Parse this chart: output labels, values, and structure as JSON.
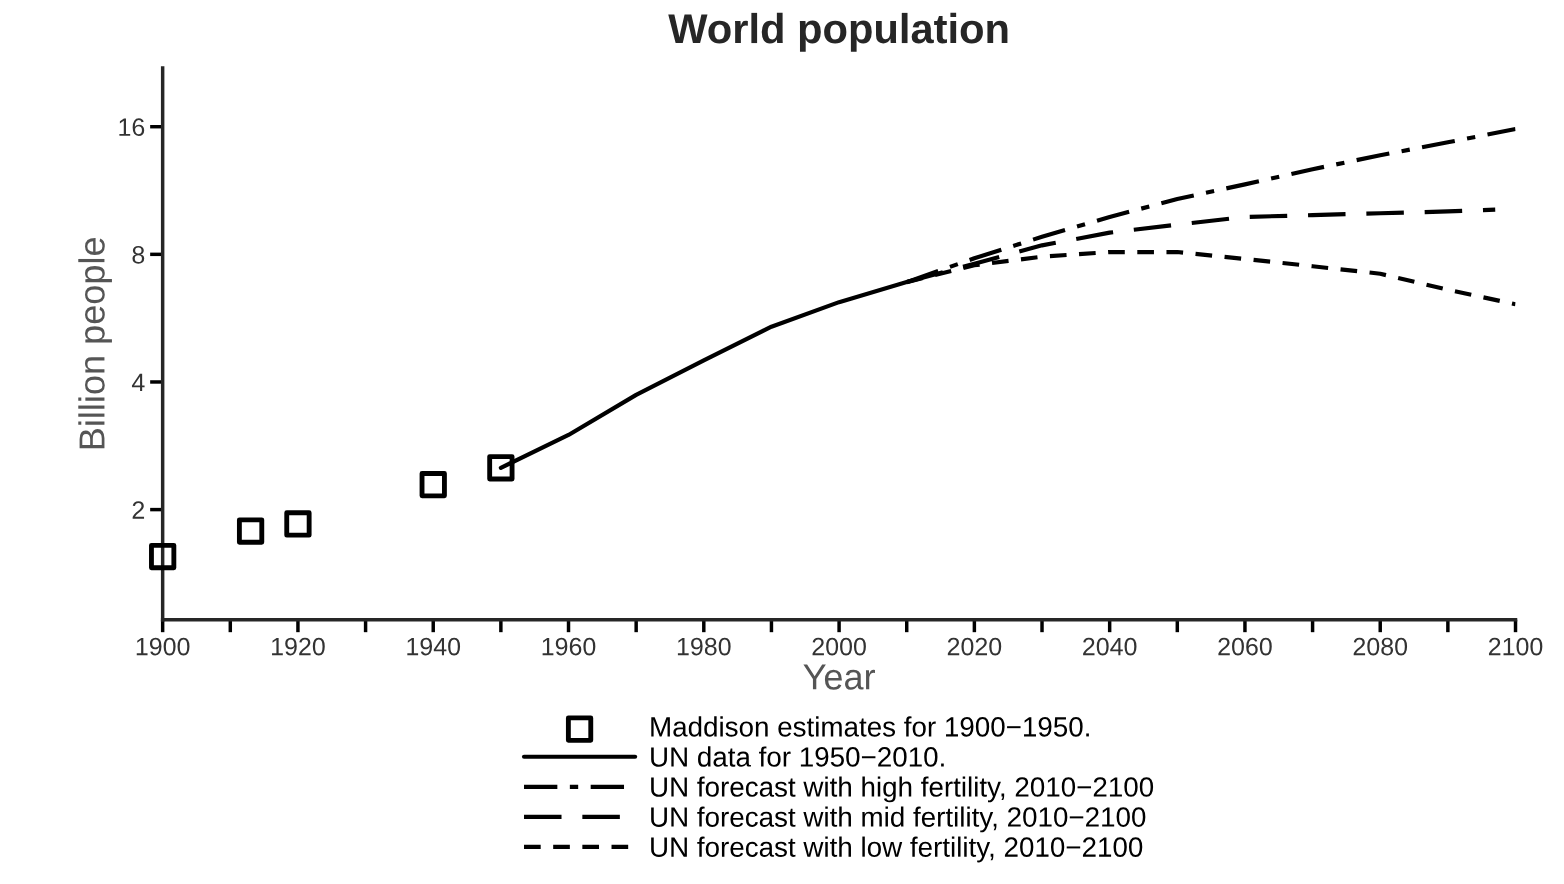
{
  "chart_data": {
    "type": "line",
    "title": "World population",
    "xlabel": "Year",
    "ylabel": "Billion people",
    "log": "y",
    "xlim": [
      1900,
      2100
    ],
    "ylim": [
      1.1,
      22
    ],
    "xticks": [
      1900,
      {
        "value": 1910,
        "label": null
      },
      1920,
      {
        "value": 1930,
        "label": null
      },
      1940,
      {
        "value": 1950,
        "label": null
      },
      1960,
      {
        "value": 1970,
        "label": null
      },
      1980,
      {
        "value": 1990,
        "label": null
      },
      2000,
      {
        "value": 2010,
        "label": null
      },
      2020,
      {
        "value": 2030,
        "label": null
      },
      2040,
      {
        "value": 2050,
        "label": null
      },
      2060,
      {
        "value": 2070,
        "label": null
      },
      2080,
      {
        "value": 2090,
        "label": null
      },
      2100
    ],
    "yticks": [
      2,
      4,
      8,
      16
    ],
    "grid": false,
    "legend": "bottom",
    "series": [
      {
        "name": "Maddison estimates for 1900−1950.",
        "type": "scatter",
        "marker": "square",
        "color": "#000000",
        "x": [
          1900,
          1913,
          1920,
          1940,
          1950
        ],
        "values": [
          1.55,
          1.78,
          1.85,
          2.29,
          2.51
        ]
      },
      {
        "name": "UN data for 1950−2010.",
        "line_style": "solid",
        "color": "#000000",
        "x": [
          1950,
          1960,
          1970,
          1980,
          1990,
          2000,
          2010
        ],
        "values": [
          2.51,
          3.0,
          3.73,
          4.5,
          5.4,
          6.17,
          6.88
        ]
      },
      {
        "name": "UN forecast with high fertility, 2010−2100",
        "line_style": "dashdot",
        "color": "#000000",
        "x": [
          2010,
          2020,
          2030,
          2040,
          2050,
          2060,
          2070,
          2080,
          2090,
          2100
        ],
        "values": [
          6.88,
          7.83,
          8.8,
          9.8,
          10.8,
          11.7,
          12.7,
          13.7,
          14.7,
          15.8
        ]
      },
      {
        "name": "UN forecast with mid fertility, 2010−2100",
        "line_style": "dashed",
        "color": "#000000",
        "x": [
          2010,
          2020,
          2030,
          2040,
          2050,
          2060,
          2070,
          2080,
          2090,
          2097
        ],
        "values": [
          6.88,
          7.6,
          8.4,
          9.0,
          9.4,
          9.8,
          9.9,
          10.0,
          10.1,
          10.2
        ]
      },
      {
        "name": "UN forecast with low fertility, 2010−2100",
        "line_style": "dotted",
        "color": "#000000",
        "x": [
          2010,
          2020,
          2030,
          2040,
          2050,
          2060,
          2070,
          2080,
          2090,
          2100
        ],
        "values": [
          6.88,
          7.54,
          7.9,
          8.1,
          8.1,
          7.8,
          7.5,
          7.2,
          6.6,
          6.1
        ]
      }
    ]
  }
}
